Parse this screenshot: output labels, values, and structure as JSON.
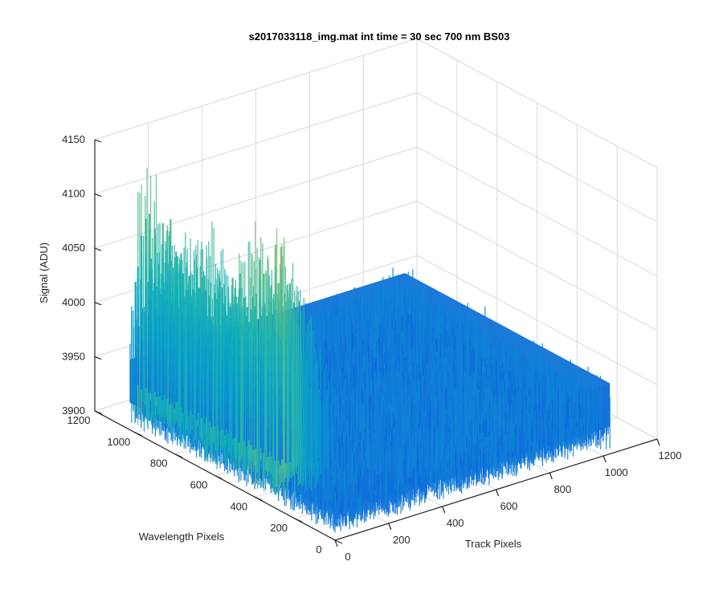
{
  "chart_data": {
    "type": "surface",
    "title": "s2017033118_img.mat int time = 30 sec  700 nm BS03",
    "xlabel": "Track Pixels",
    "ylabel": "Wavelength Pixels",
    "zlabel": "Signal (ADU)",
    "xlim": [
      0,
      1200
    ],
    "ylim": [
      0,
      1200
    ],
    "zlim": [
      3900,
      4150
    ],
    "xticks": [
      "0",
      "200",
      "400",
      "600",
      "800",
      "1000",
      "1200"
    ],
    "yticks": [
      "0",
      "200",
      "400",
      "600",
      "800",
      "1000",
      "1200"
    ],
    "zticks": [
      "3900",
      "3950",
      "4000",
      "4050",
      "4100",
      "4150"
    ],
    "grid": true,
    "colormap": "parula",
    "surface_extent": {
      "x": [
        0,
        1024
      ],
      "y": [
        0,
        1024
      ]
    },
    "baseline_signal": 3950,
    "noise_amplitude": 15,
    "peak_lines": [
      {
        "y": 1020,
        "peak": 4062
      },
      {
        "y": 985,
        "peak": 4115
      },
      {
        "y": 950,
        "peak": 4095
      },
      {
        "y": 915,
        "peak": 4080
      },
      {
        "y": 880,
        "peak": 4110
      },
      {
        "y": 845,
        "peak": 4075
      },
      {
        "y": 810,
        "peak": 4085
      },
      {
        "y": 775,
        "peak": 4080
      },
      {
        "y": 740,
        "peak": 4090
      },
      {
        "y": 705,
        "peak": 4100
      },
      {
        "y": 670,
        "peak": 4085
      },
      {
        "y": 635,
        "peak": 4090
      },
      {
        "y": 600,
        "peak": 4080
      },
      {
        "y": 565,
        "peak": 4095
      },
      {
        "y": 530,
        "peak": 4090
      },
      {
        "y": 495,
        "peak": 4100
      },
      {
        "y": 460,
        "peak": 4105
      },
      {
        "y": 425,
        "peak": 4120
      },
      {
        "y": 390,
        "peak": 4140
      },
      {
        "y": 355,
        "peak": 4130
      },
      {
        "y": 320,
        "peak": 4145
      },
      {
        "y": 285,
        "peak": 4120
      }
    ]
  }
}
